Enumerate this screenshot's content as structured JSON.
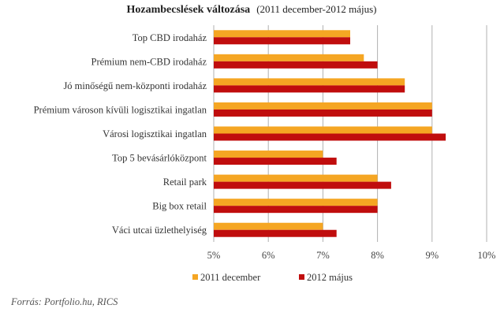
{
  "chart_data": {
    "type": "bar",
    "orientation": "horizontal",
    "title": "Hozambecslések változása",
    "subtitle": "(2011 december-2012 május)",
    "categories": [
      "Top CBD irodaház",
      "Prémium nem-CBD irodaház",
      "Jó minőségű nem-központi irodaház",
      "Prémium városon kívüli logisztikai ingatlan",
      "Városi logisztikai ingatlan",
      "Top 5 bevásárlóközpont",
      "Retail park",
      "Big box retail",
      "Váci utcai üzlethelyiség"
    ],
    "series": [
      {
        "name": "2011 december",
        "color": "#f5a623",
        "values": [
          7.5,
          7.75,
          8.5,
          9.0,
          9.0,
          7.0,
          8.0,
          8.0,
          7.0
        ]
      },
      {
        "name": "2012 május",
        "color": "#c00d0d",
        "values": [
          7.5,
          8.0,
          8.5,
          9.0,
          9.25,
          7.25,
          8.25,
          8.0,
          7.25
        ]
      }
    ],
    "xlim": [
      5,
      10
    ],
    "xticks": [
      "5%",
      "6%",
      "7%",
      "8%",
      "9%",
      "10%"
    ],
    "xtick_values": [
      5,
      6,
      7,
      8,
      9,
      10
    ],
    "grid": "vertical",
    "legend": "bottom",
    "source": "Forrás: Portfolio.hu, RICS"
  }
}
